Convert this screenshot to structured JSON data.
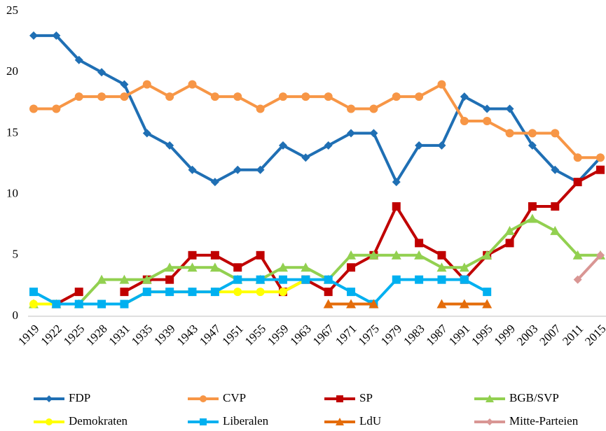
{
  "chart_data": {
    "type": "line",
    "categories": [
      "1919",
      "1922",
      "1925",
      "1928",
      "1931",
      "1935",
      "1939",
      "1943",
      "1947",
      "1951",
      "1955",
      "1959",
      "1963",
      "1967",
      "1971",
      "1975",
      "1979",
      "1983",
      "1987",
      "1991",
      "1995",
      "1999",
      "2003",
      "2007",
      "2011",
      "2015"
    ],
    "ylim": [
      0,
      25
    ],
    "yticks": [
      0,
      5,
      10,
      15,
      20,
      25
    ],
    "grid": false,
    "legend": "bottom",
    "series": [
      {
        "name": "FDP",
        "color": "#1f6fb4",
        "marker": "diamond",
        "values": [
          23,
          23,
          21,
          20,
          19,
          15,
          14,
          12,
          11,
          12,
          12,
          14,
          13,
          14,
          15,
          15,
          11,
          14,
          14,
          18,
          17,
          17,
          14,
          12,
          11,
          13
        ]
      },
      {
        "name": "CVP",
        "color": "#f79646",
        "marker": "circle",
        "values": [
          17,
          17,
          18,
          18,
          18,
          19,
          18,
          19,
          18,
          18,
          17,
          18,
          18,
          18,
          17,
          17,
          18,
          18,
          19,
          16,
          16,
          15,
          15,
          15,
          13,
          13
        ]
      },
      {
        "name": "SP",
        "color": "#c00000",
        "marker": "square",
        "values": [
          null,
          1,
          2,
          null,
          2,
          3,
          3,
          5,
          5,
          4,
          5,
          2,
          3,
          2,
          4,
          5,
          9,
          6,
          5,
          3,
          5,
          6,
          9,
          9,
          11,
          12
        ]
      },
      {
        "name": "BGB/SVP",
        "color": "#92d050",
        "marker": "triangle",
        "values": [
          1,
          1,
          1,
          3,
          3,
          3,
          4,
          4,
          4,
          3,
          3,
          4,
          4,
          3,
          5,
          5,
          5,
          5,
          4,
          4,
          5,
          7,
          8,
          7,
          5,
          5
        ]
      },
      {
        "name": "Demokraten",
        "color": "#ffff00",
        "marker": "circle",
        "values": [
          1,
          1,
          1,
          1,
          1,
          2,
          2,
          2,
          2,
          2,
          2,
          2,
          3,
          null,
          null,
          null,
          null,
          null,
          null,
          null,
          null,
          null,
          null,
          null,
          null,
          null
        ]
      },
      {
        "name": "Liberalen",
        "color": "#00b0f0",
        "marker": "square",
        "values": [
          2,
          1,
          1,
          1,
          1,
          2,
          2,
          2,
          2,
          3,
          3,
          3,
          3,
          3,
          2,
          1,
          3,
          3,
          3,
          3,
          2,
          null,
          null,
          null,
          null,
          null
        ]
      },
      {
        "name": "LdU",
        "color": "#e46c0a",
        "marker": "triangle",
        "values": [
          null,
          null,
          null,
          null,
          null,
          null,
          null,
          null,
          null,
          null,
          null,
          null,
          null,
          1,
          1,
          1,
          null,
          null,
          1,
          1,
          1,
          null,
          null,
          null,
          null,
          null
        ]
      },
      {
        "name": "Mitte-Parteien",
        "color": "#d99694",
        "marker": "diamond",
        "values": [
          null,
          null,
          null,
          null,
          null,
          null,
          null,
          null,
          null,
          null,
          null,
          null,
          null,
          null,
          null,
          null,
          null,
          null,
          null,
          null,
          null,
          null,
          null,
          null,
          3,
          5
        ]
      }
    ]
  }
}
